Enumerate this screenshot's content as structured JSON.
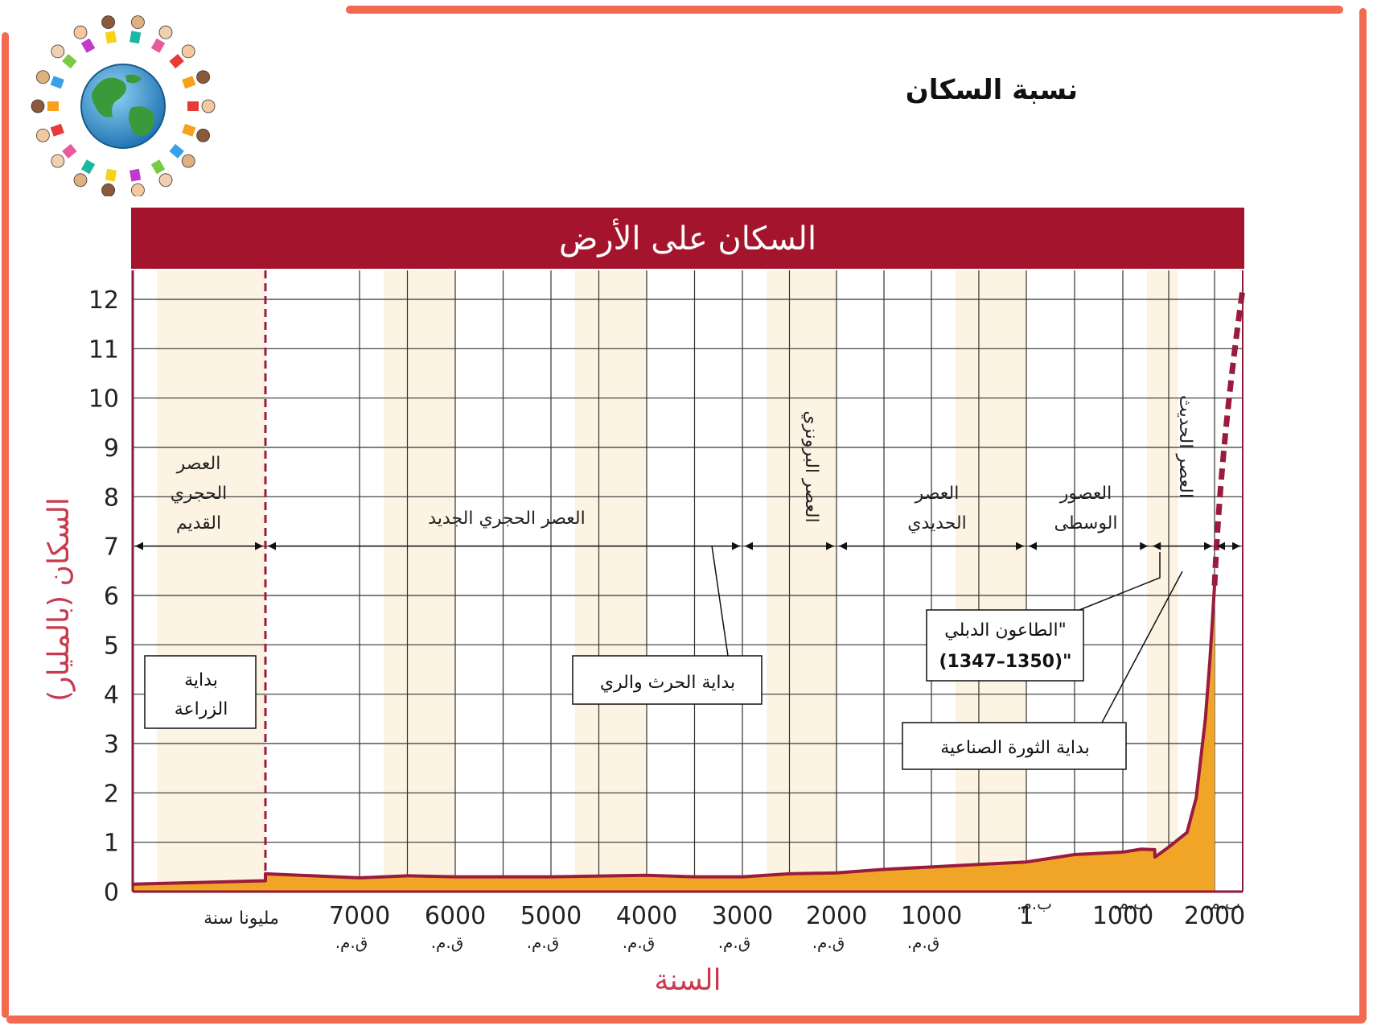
{
  "page": {
    "title": "نسبة السكان"
  },
  "logo": {
    "icon": "globe-with-children-icon"
  },
  "chart_data": {
    "type": "area",
    "title": "السكان على الأرض",
    "xlabel": "السنة",
    "ylabel": "السكان (بالمليار)",
    "ylim": [
      0,
      12
    ],
    "yticks": [
      0,
      1,
      2,
      3,
      4,
      5,
      6,
      7,
      8,
      9,
      10,
      11,
      12
    ],
    "grid": true,
    "x_tick_labels": [
      {
        "year": "مليونا سنة",
        "era": ""
      },
      {
        "year": "7000",
        "era": "ق.م."
      },
      {
        "year": "6000",
        "era": "ق.م."
      },
      {
        "year": "5000",
        "era": "ق.م."
      },
      {
        "year": "4000",
        "era": "ق.م."
      },
      {
        "year": "3000",
        "era": "ق.م."
      },
      {
        "year": "2000",
        "era": "ق.م."
      },
      {
        "year": "1000",
        "era": "ق.م."
      },
      {
        "year": "1",
        "era": "ب.م."
      },
      {
        "year": "1000",
        "era": "ب.م."
      },
      {
        "year": "2000",
        "era": "ب.م."
      }
    ],
    "series": [
      {
        "x": [
          -2000000,
          -8500,
          -8000,
          -7000,
          -6500,
          -6000,
          -5000,
          -4000,
          -3500,
          -3000,
          -2500,
          -2000,
          -1500,
          -1000,
          -500,
          1,
          500,
          1000,
          1200,
          1347,
          1350,
          1500,
          1700,
          1800,
          1900,
          1950,
          2000
        ],
        "values": [
          0.15,
          0.22,
          0.36,
          0.28,
          0.32,
          0.3,
          0.3,
          0.33,
          0.3,
          0.3,
          0.36,
          0.38,
          0.45,
          0.5,
          0.55,
          0.6,
          0.75,
          0.8,
          0.86,
          0.85,
          0.7,
          0.9,
          1.2,
          1.9,
          3.5,
          4.7,
          6.2
        ]
      },
      {
        "line_style": "dashed",
        "x": [
          2000,
          2025,
          2050
        ],
        "values": [
          6.2,
          9.0,
          12.2
        ]
      }
    ],
    "periods": [
      {
        "label": "العصر الحجري القديم",
        "start": "-2000000",
        "end": "-8000"
      },
      {
        "label": "العصر الحجري الجديد",
        "start": "-8000",
        "end": "-3000"
      },
      {
        "label": "العصر البرونزي",
        "start": "-3000",
        "end": "-2000"
      },
      {
        "label": "العصر الحديدي",
        "start": "-2000",
        "end": "1"
      },
      {
        "label": "العصور الوسطى",
        "start": "1",
        "end": "1300"
      },
      {
        "label": "العصر الحديث",
        "start": "1300",
        "end": "2000"
      }
    ],
    "annotations": [
      {
        "lines": [
          "بداية",
          "الزراعة"
        ]
      },
      {
        "lines": [
          "بداية الحرث والري"
        ]
      },
      {
        "lines": [
          "\"الطاعون الدبلي",
          "(1347–1350)\""
        ]
      },
      {
        "lines": [
          "بداية الثورة الصناعية"
        ]
      }
    ],
    "colors": {
      "header_bar": "#a4142c",
      "header_text": "#ffffff",
      "axis": "#8c1a3a",
      "area_fill": "#f0a526",
      "line": "#9a1b3e",
      "band_light": "#fdf3e3",
      "grid": "#333333",
      "axis_title": "#c83a4e"
    }
  }
}
